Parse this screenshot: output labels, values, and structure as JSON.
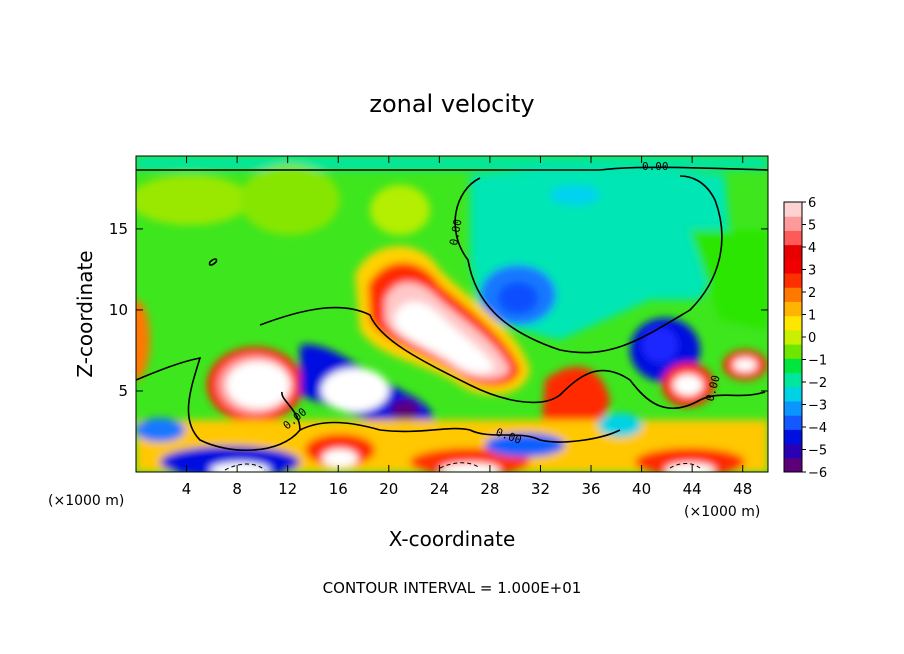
{
  "chart_data": {
    "type": "heatmap",
    "title": "zonal velocity",
    "xlabel": "X-coordinate",
    "ylabel": "Z-coordinate",
    "x_unit_left": "(×1000 m)",
    "x_unit_right": "(×1000 m)",
    "footer": "CONTOUR INTERVAL = 1.000E+01",
    "xlim": [
      0,
      50
    ],
    "ylim": [
      0,
      19.5
    ],
    "x_ticks": [
      4,
      8,
      12,
      16,
      20,
      24,
      28,
      32,
      36,
      40,
      44,
      48
    ],
    "y_ticks": [
      5,
      10,
      15
    ],
    "colorbar": {
      "min": -6,
      "max": 6,
      "ticks": [
        6,
        5,
        4,
        3,
        2,
        1,
        0,
        -1,
        -2,
        -3,
        -4,
        -5,
        -6
      ],
      "colors": [
        "#5c007a",
        "#2a00b4",
        "#0010e0",
        "#1458ff",
        "#0a96ff",
        "#00d2e6",
        "#00e69a",
        "#00e63c",
        "#6ee600",
        "#c8f000",
        "#ffe600",
        "#ffb400",
        "#ff7800",
        "#ff3000",
        "#f00000",
        "#e60000",
        "#ff5a5a",
        "#ff9a9a",
        "#ffd2d2"
      ]
    },
    "contour_labels": [
      "0.00",
      "0.00",
      "0.00",
      "0.00",
      "0.00",
      "0.00"
    ],
    "velocity_features": [
      {
        "x": 10.0,
        "z": 5.8,
        "value": 8
      },
      {
        "x": 17.5,
        "z": 5.0,
        "value": -7
      },
      {
        "x": 23.0,
        "z": 10.0,
        "value": 7
      },
      {
        "x": 30.0,
        "z": 6.5,
        "value": 7
      },
      {
        "x": 30.0,
        "z": 11.0,
        "value": -3
      },
      {
        "x": 43.0,
        "z": 7.5,
        "value": -5
      },
      {
        "x": 44.5,
        "z": 5.5,
        "value": 7
      }
    ]
  }
}
